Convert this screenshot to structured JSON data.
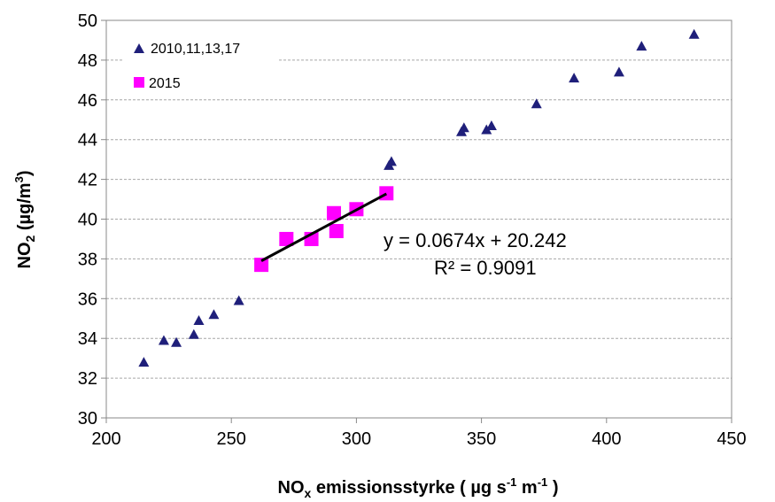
{
  "chart_data": {
    "type": "scatter",
    "xlabel_main": "NO",
    "xlabel_sub": "x",
    "xlabel_rest": " emissionsstyrke ( µg s",
    "xlabel_sup": "-1",
    "xlabel_mid": " m",
    "xlabel_sup2": "-1",
    "xlabel_end": " )",
    "ylabel_main": "NO",
    "ylabel_sub": "2",
    "ylabel_rest": " (µg/m",
    "ylabel_sup": "3",
    "ylabel_end": ")",
    "xlim": [
      200,
      450
    ],
    "ylim": [
      30,
      50
    ],
    "xticks": [
      "200",
      "250",
      "300",
      "350",
      "400",
      "450"
    ],
    "yticks": [
      "30",
      "32",
      "34",
      "36",
      "38",
      "40",
      "42",
      "44",
      "46",
      "48",
      "50"
    ],
    "grid": "horizontal-dashed",
    "legend_position": "top-left",
    "series": [
      {
        "name": "2010,11,13,17",
        "marker": "triangle",
        "color": "#1F1F7A",
        "points": [
          [
            215,
            32.8
          ],
          [
            223,
            33.9
          ],
          [
            228,
            33.8
          ],
          [
            235,
            34.2
          ],
          [
            237,
            34.9
          ],
          [
            243,
            35.2
          ],
          [
            253,
            35.9
          ],
          [
            313,
            42.7
          ],
          [
            314,
            42.9
          ],
          [
            342,
            44.4
          ],
          [
            343,
            44.6
          ],
          [
            352,
            44.5
          ],
          [
            354,
            44.7
          ],
          [
            372,
            45.8
          ],
          [
            387,
            47.1
          ],
          [
            405,
            47.4
          ],
          [
            414,
            48.7
          ],
          [
            435,
            49.3
          ]
        ]
      },
      {
        "name": "2015",
        "marker": "square",
        "color": "#FF00FF",
        "points": [
          [
            262,
            37.7
          ],
          [
            272,
            39.0
          ],
          [
            282,
            39.0
          ],
          [
            291,
            40.3
          ],
          [
            292,
            39.4
          ],
          [
            300,
            40.5
          ],
          [
            312,
            41.3
          ]
        ]
      }
    ],
    "trendline": {
      "x": [
        262,
        312
      ],
      "slope": 0.0674,
      "intercept": 20.242,
      "color": "#000000",
      "equation": "y = 0.0674x + 20.242",
      "r2": "R² = 0.9091"
    }
  }
}
